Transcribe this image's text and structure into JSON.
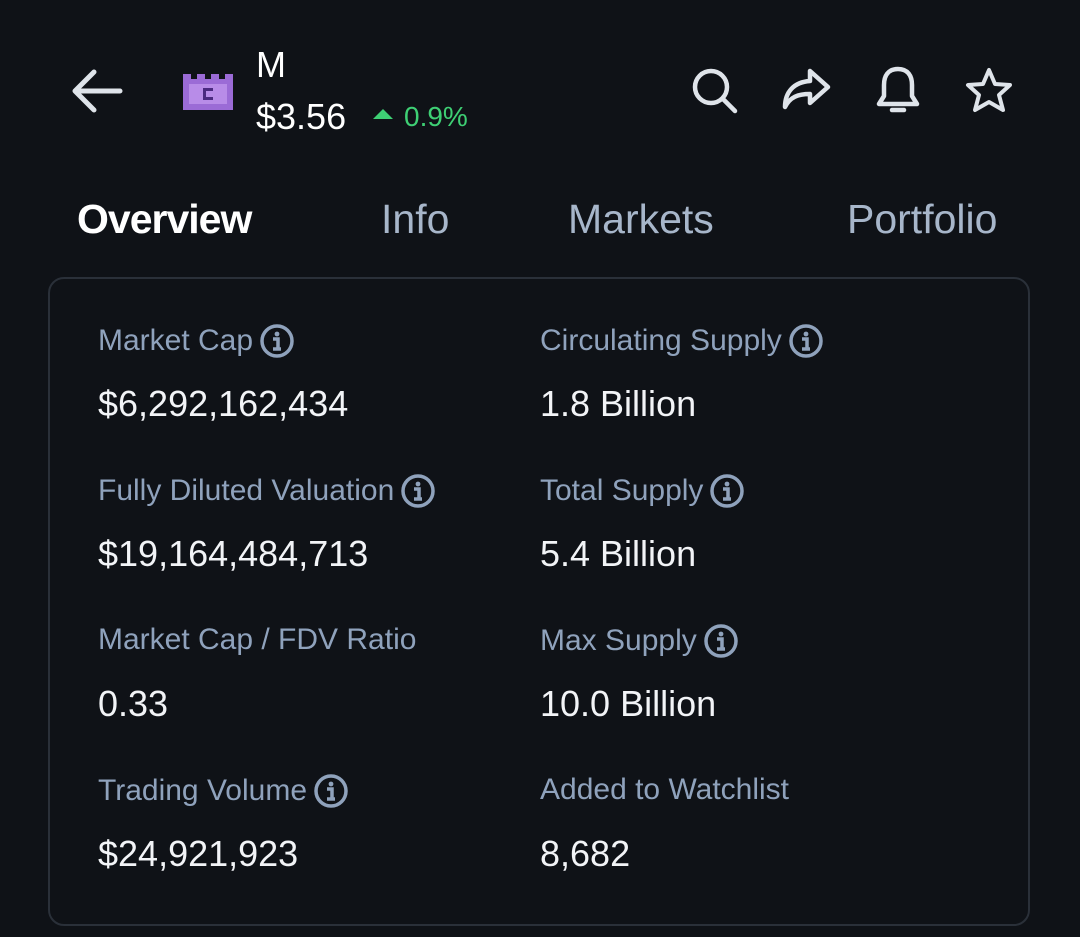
{
  "header": {
    "symbol": "M",
    "price": "$3.56",
    "change": "0.9%"
  },
  "tabs": [
    "Overview",
    "Info",
    "Markets",
    "Portfolio"
  ],
  "stats": [
    {
      "label": "Market Cap",
      "value": "$6,292,162,434"
    },
    {
      "label": "Circulating Supply",
      "value": "1.8 Billion"
    },
    {
      "label": "Fully Diluted Valuation",
      "value": "$19,164,484,713"
    },
    {
      "label": "Total Supply",
      "value": "5.4 Billion"
    },
    {
      "label": "Market Cap / FDV Ratio",
      "value": "0.33"
    },
    {
      "label": "Max Supply",
      "value": "10.0 Billion"
    },
    {
      "label": "Trading Volume",
      "value": "$24,921,923"
    },
    {
      "label": "Added to Watchlist",
      "value": "8,682"
    }
  ]
}
